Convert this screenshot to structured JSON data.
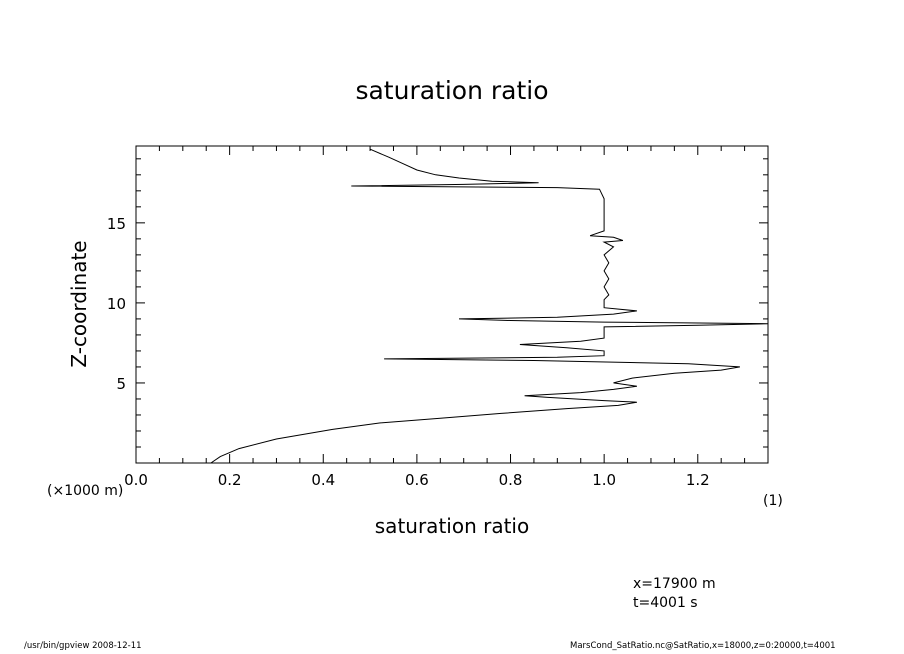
{
  "chart_data": {
    "type": "line",
    "title": "saturation ratio",
    "xlabel": "saturation ratio",
    "ylabel": "Z-coordinate",
    "y_unit": "(×1000 m)",
    "x_unit": "(1)",
    "xlim": [
      0.0,
      1.35
    ],
    "ylim": [
      0,
      19.8
    ],
    "x_ticks": [
      "0.0",
      "0.2",
      "0.4",
      "0.6",
      "0.8",
      "1.0",
      "1.2"
    ],
    "y_ticks": [
      "5",
      "10",
      "15"
    ],
    "series": [
      {
        "points": [
          [
            0.16,
            0.0
          ],
          [
            0.18,
            0.4
          ],
          [
            0.22,
            0.9
          ],
          [
            0.3,
            1.5
          ],
          [
            0.42,
            2.1
          ],
          [
            0.52,
            2.5
          ],
          [
            0.65,
            2.8
          ],
          [
            0.78,
            3.1
          ],
          [
            0.92,
            3.4
          ],
          [
            1.03,
            3.6
          ],
          [
            1.07,
            3.8
          ],
          [
            1.0,
            3.9
          ],
          [
            0.88,
            4.1
          ],
          [
            0.83,
            4.2
          ],
          [
            0.95,
            4.4
          ],
          [
            1.02,
            4.6
          ],
          [
            1.07,
            4.8
          ],
          [
            1.02,
            5.0
          ],
          [
            1.06,
            5.3
          ],
          [
            1.15,
            5.6
          ],
          [
            1.25,
            5.8
          ],
          [
            1.29,
            6.0
          ],
          [
            1.18,
            6.2
          ],
          [
            0.85,
            6.4
          ],
          [
            0.53,
            6.5
          ],
          [
            0.9,
            6.6
          ],
          [
            1.0,
            6.7
          ],
          [
            1.0,
            7.0
          ],
          [
            0.92,
            7.2
          ],
          [
            0.82,
            7.4
          ],
          [
            0.95,
            7.6
          ],
          [
            1.0,
            7.8
          ],
          [
            1.0,
            8.5
          ],
          [
            1.2,
            8.6
          ],
          [
            1.35,
            8.7
          ],
          [
            1.0,
            8.8
          ],
          [
            0.8,
            8.9
          ],
          [
            0.69,
            9.0
          ],
          [
            0.9,
            9.1
          ],
          [
            1.02,
            9.3
          ],
          [
            1.07,
            9.5
          ],
          [
            1.0,
            9.7
          ],
          [
            1.0,
            10.2
          ],
          [
            1.01,
            10.5
          ],
          [
            1.0,
            11.0
          ],
          [
            1.01,
            11.5
          ],
          [
            1.0,
            12.0
          ],
          [
            1.01,
            12.5
          ],
          [
            1.0,
            13.0
          ],
          [
            1.02,
            13.5
          ],
          [
            1.0,
            13.8
          ],
          [
            1.04,
            13.9
          ],
          [
            1.02,
            14.1
          ],
          [
            0.97,
            14.2
          ],
          [
            1.0,
            14.5
          ],
          [
            1.0,
            15.5
          ],
          [
            1.0,
            16.5
          ],
          [
            0.99,
            17.1
          ],
          [
            0.9,
            17.2
          ],
          [
            0.46,
            17.3
          ],
          [
            0.7,
            17.4
          ],
          [
            0.86,
            17.5
          ],
          [
            0.76,
            17.6
          ],
          [
            0.69,
            17.8
          ],
          [
            0.64,
            18.0
          ],
          [
            0.6,
            18.3
          ],
          [
            0.57,
            18.7
          ],
          [
            0.54,
            19.1
          ],
          [
            0.5,
            19.6
          ]
        ]
      }
    ]
  },
  "annotations": {
    "param_x": "x=17900  m",
    "param_t": "t=4001  s"
  },
  "footer": {
    "left": "/usr/bin/gpview   2008-12-11",
    "right": "MarsCond_SatRatio.nc@SatRatio,x=18000,z=0:20000,t=4001"
  }
}
